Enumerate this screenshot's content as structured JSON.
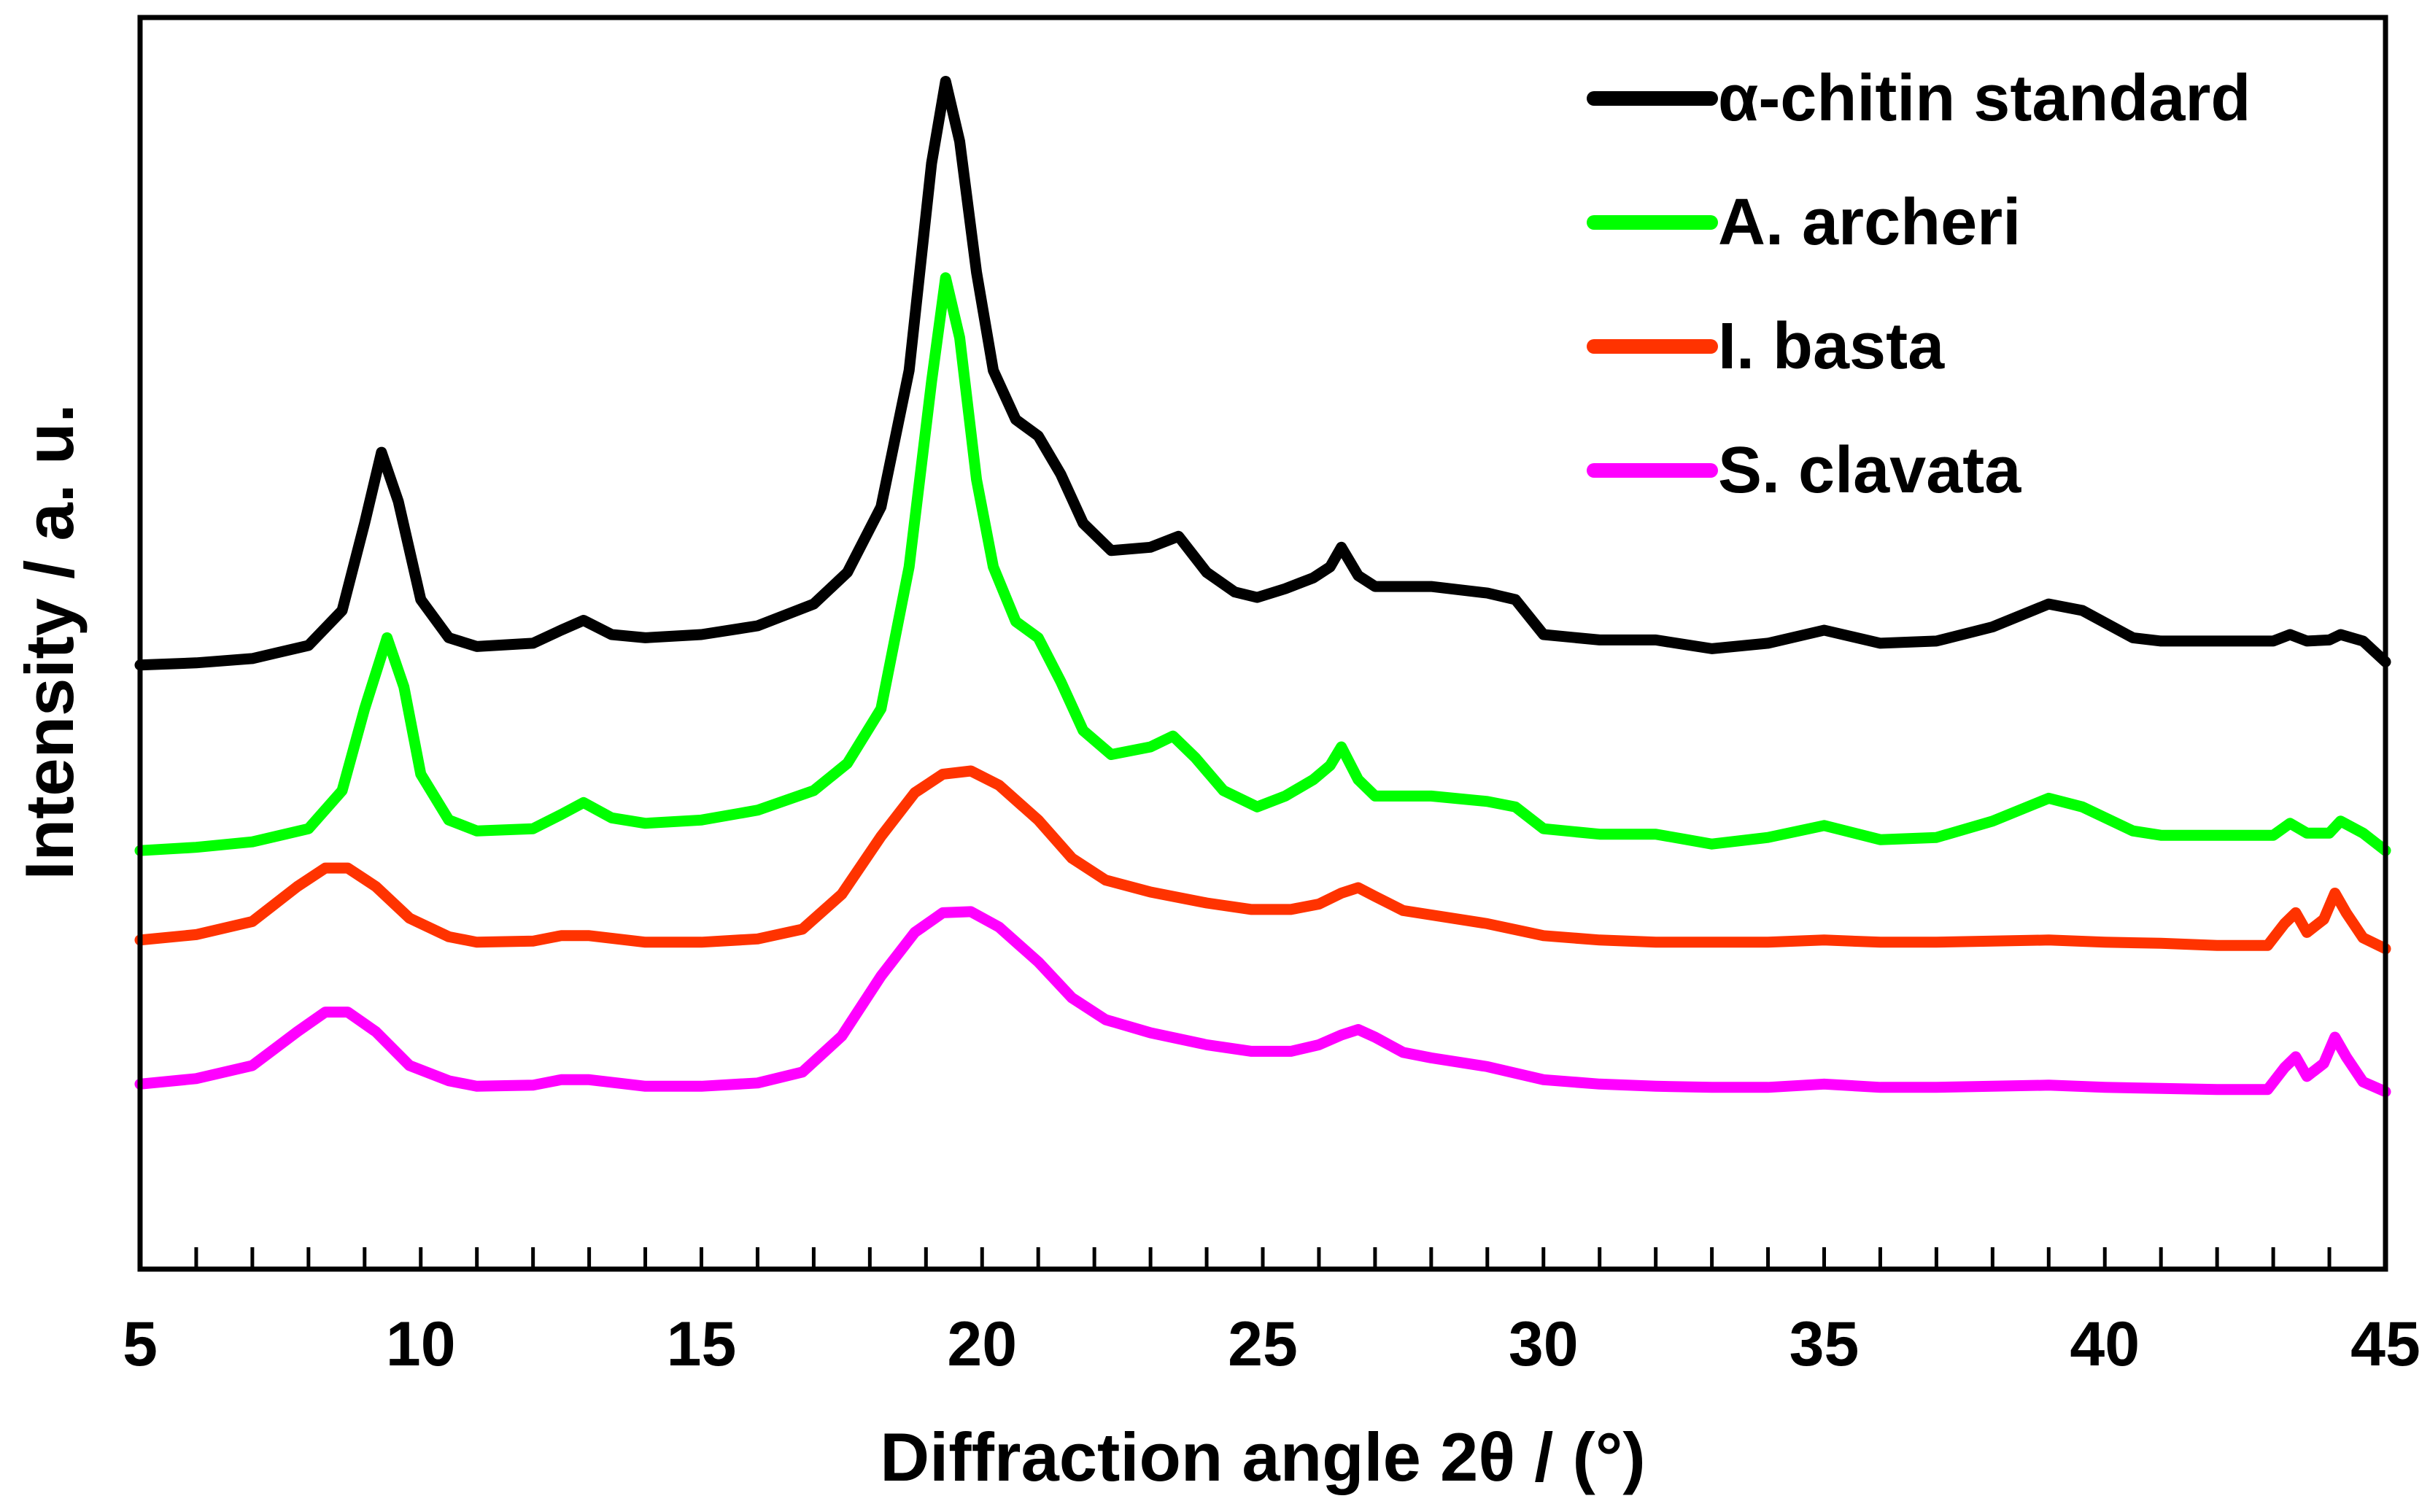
{
  "chart_data": {
    "type": "line",
    "title": "",
    "xlabel": "Diffraction angle 2θ / (°)",
    "ylabel": "Intensity / a. u.",
    "xlim": [
      5,
      45
    ],
    "ylim": [
      0,
      100
    ],
    "x_ticks": [
      5,
      10,
      15,
      20,
      25,
      30,
      35,
      40,
      45
    ],
    "x_minor_step": 1,
    "grid": false,
    "legend_position": "top-right",
    "series": [
      {
        "name": "α-chitin standard",
        "color": "#000000",
        "points": [
          [
            5,
            46
          ],
          [
            6,
            46.2
          ],
          [
            7,
            46.6
          ],
          [
            8,
            47.8
          ],
          [
            8.6,
            51
          ],
          [
            9,
            59
          ],
          [
            9.3,
            65.5
          ],
          [
            9.6,
            61
          ],
          [
            10,
            52
          ],
          [
            10.5,
            48.5
          ],
          [
            11,
            47.7
          ],
          [
            12,
            48
          ],
          [
            12.5,
            49.2
          ],
          [
            12.9,
            50.1
          ],
          [
            13.4,
            48.8
          ],
          [
            14,
            48.5
          ],
          [
            15,
            48.8
          ],
          [
            16,
            49.6
          ],
          [
            17,
            51.6
          ],
          [
            17.6,
            54.5
          ],
          [
            18.2,
            60.5
          ],
          [
            18.7,
            73
          ],
          [
            19.1,
            92
          ],
          [
            19.35,
            99.5
          ],
          [
            19.6,
            94
          ],
          [
            19.9,
            82
          ],
          [
            20.2,
            73
          ],
          [
            20.6,
            68.5
          ],
          [
            21,
            67
          ],
          [
            21.4,
            63.5
          ],
          [
            21.8,
            59
          ],
          [
            22.3,
            56.5
          ],
          [
            23,
            56.8
          ],
          [
            23.5,
            57.8
          ],
          [
            24,
            54.5
          ],
          [
            24.5,
            52.7
          ],
          [
            24.9,
            52.2
          ],
          [
            25.4,
            53
          ],
          [
            25.9,
            54
          ],
          [
            26.2,
            55
          ],
          [
            26.4,
            56.8
          ],
          [
            26.7,
            54.2
          ],
          [
            27,
            53.2
          ],
          [
            28,
            53.2
          ],
          [
            29,
            52.6
          ],
          [
            29.5,
            52
          ],
          [
            30,
            48.8
          ],
          [
            31,
            48.3
          ],
          [
            32,
            48.3
          ],
          [
            33,
            47.5
          ],
          [
            34,
            48
          ],
          [
            35,
            49.2
          ],
          [
            36,
            48
          ],
          [
            37,
            48.2
          ],
          [
            38,
            49.5
          ],
          [
            39,
            51.6
          ],
          [
            39.6,
            51
          ],
          [
            40.5,
            48.5
          ],
          [
            41,
            48.2
          ],
          [
            42,
            48.2
          ],
          [
            43,
            48.2
          ],
          [
            43.3,
            48.8
          ],
          [
            43.6,
            48.2
          ],
          [
            44,
            48.3
          ],
          [
            44.2,
            48.8
          ],
          [
            44.6,
            48.2
          ],
          [
            45,
            46.3
          ]
        ]
      },
      {
        "name": "A. archeri",
        "color": "#00ff00",
        "points": [
          [
            5,
            29
          ],
          [
            6,
            29.3
          ],
          [
            7,
            29.8
          ],
          [
            8,
            31
          ],
          [
            8.6,
            34.5
          ],
          [
            9,
            42
          ],
          [
            9.4,
            48.5
          ],
          [
            9.7,
            44
          ],
          [
            10,
            36
          ],
          [
            10.5,
            31.8
          ],
          [
            11,
            30.8
          ],
          [
            12,
            31
          ],
          [
            12.5,
            32.3
          ],
          [
            12.9,
            33.4
          ],
          [
            13.4,
            32
          ],
          [
            14,
            31.5
          ],
          [
            15,
            31.8
          ],
          [
            16,
            32.7
          ],
          [
            17,
            34.5
          ],
          [
            17.6,
            37
          ],
          [
            18.2,
            42
          ],
          [
            18.7,
            55
          ],
          [
            19.1,
            72
          ],
          [
            19.35,
            81.5
          ],
          [
            19.6,
            76
          ],
          [
            19.9,
            63
          ],
          [
            20.2,
            55
          ],
          [
            20.6,
            50
          ],
          [
            21,
            48.5
          ],
          [
            21.4,
            44.5
          ],
          [
            21.8,
            40
          ],
          [
            22.3,
            37.8
          ],
          [
            23,
            38.5
          ],
          [
            23.4,
            39.5
          ],
          [
            23.8,
            37.5
          ],
          [
            24.3,
            34.5
          ],
          [
            24.9,
            33
          ],
          [
            25.4,
            34
          ],
          [
            25.9,
            35.5
          ],
          [
            26.2,
            36.8
          ],
          [
            26.4,
            38.5
          ],
          [
            26.7,
            35.5
          ],
          [
            27,
            34
          ],
          [
            28,
            34
          ],
          [
            29,
            33.5
          ],
          [
            29.5,
            33
          ],
          [
            30,
            31
          ],
          [
            31,
            30.5
          ],
          [
            32,
            30.5
          ],
          [
            33,
            29.6
          ],
          [
            34,
            30.2
          ],
          [
            35,
            31.3
          ],
          [
            36,
            30
          ],
          [
            37,
            30.2
          ],
          [
            38,
            31.7
          ],
          [
            39,
            33.8
          ],
          [
            39.6,
            33
          ],
          [
            40.5,
            30.8
          ],
          [
            41,
            30.4
          ],
          [
            42,
            30.4
          ],
          [
            43,
            30.4
          ],
          [
            43.3,
            31.5
          ],
          [
            43.6,
            30.6
          ],
          [
            44,
            30.6
          ],
          [
            44.2,
            31.7
          ],
          [
            44.6,
            30.6
          ],
          [
            45,
            29
          ]
        ]
      },
      {
        "name": "I. basta",
        "color": "#ff3300",
        "points": [
          [
            5,
            20.8
          ],
          [
            6,
            21.3
          ],
          [
            7,
            22.5
          ],
          [
            7.8,
            25.7
          ],
          [
            8.3,
            27.4
          ],
          [
            8.7,
            27.4
          ],
          [
            9.2,
            25.7
          ],
          [
            9.8,
            22.8
          ],
          [
            10.5,
            21.1
          ],
          [
            11,
            20.6
          ],
          [
            12,
            20.7
          ],
          [
            12.5,
            21.2
          ],
          [
            13,
            21.2
          ],
          [
            14,
            20.6
          ],
          [
            15,
            20.6
          ],
          [
            16,
            20.9
          ],
          [
            16.8,
            21.8
          ],
          [
            17.5,
            25
          ],
          [
            18.2,
            30.3
          ],
          [
            18.8,
            34.3
          ],
          [
            19.3,
            36
          ],
          [
            19.8,
            36.3
          ],
          [
            20.3,
            35
          ],
          [
            21,
            31.8
          ],
          [
            21.6,
            28.3
          ],
          [
            22.2,
            26.3
          ],
          [
            23,
            25.2
          ],
          [
            24,
            24.2
          ],
          [
            24.8,
            23.6
          ],
          [
            25.5,
            23.6
          ],
          [
            26,
            24.1
          ],
          [
            26.4,
            25.1
          ],
          [
            26.7,
            25.6
          ],
          [
            27,
            24.8
          ],
          [
            27.5,
            23.5
          ],
          [
            28,
            23.1
          ],
          [
            29,
            22.3
          ],
          [
            30,
            21.2
          ],
          [
            31,
            20.8
          ],
          [
            32,
            20.6
          ],
          [
            33,
            20.6
          ],
          [
            34,
            20.6
          ],
          [
            35,
            20.8
          ],
          [
            36,
            20.6
          ],
          [
            37,
            20.6
          ],
          [
            38,
            20.7
          ],
          [
            39,
            20.8
          ],
          [
            40,
            20.6
          ],
          [
            41,
            20.5
          ],
          [
            42,
            20.3
          ],
          [
            42.9,
            20.3
          ],
          [
            43.2,
            22.3
          ],
          [
            43.4,
            23.3
          ],
          [
            43.6,
            21.5
          ],
          [
            43.9,
            22.7
          ],
          [
            44.1,
            25.1
          ],
          [
            44.3,
            23.3
          ],
          [
            44.6,
            21
          ],
          [
            45,
            20
          ]
        ]
      },
      {
        "name": "S. clavata",
        "color": "#ff00ff",
        "points": [
          [
            5,
            7.6
          ],
          [
            6,
            8.1
          ],
          [
            7,
            9.3
          ],
          [
            7.8,
            12.4
          ],
          [
            8.3,
            14.2
          ],
          [
            8.7,
            14.2
          ],
          [
            9.2,
            12.4
          ],
          [
            9.8,
            9.3
          ],
          [
            10.5,
            7.9
          ],
          [
            11,
            7.4
          ],
          [
            12,
            7.5
          ],
          [
            12.5,
            8
          ],
          [
            13,
            8
          ],
          [
            14,
            7.4
          ],
          [
            15,
            7.4
          ],
          [
            16,
            7.7
          ],
          [
            16.8,
            8.7
          ],
          [
            17.5,
            12
          ],
          [
            18.2,
            17.5
          ],
          [
            18.8,
            21.5
          ],
          [
            19.3,
            23.3
          ],
          [
            19.8,
            23.4
          ],
          [
            20.3,
            22
          ],
          [
            21,
            18.8
          ],
          [
            21.6,
            15.5
          ],
          [
            22.2,
            13.5
          ],
          [
            23,
            12.3
          ],
          [
            24,
            11.2
          ],
          [
            24.8,
            10.6
          ],
          [
            25.5,
            10.6
          ],
          [
            26,
            11.2
          ],
          [
            26.4,
            12.1
          ],
          [
            26.7,
            12.6
          ],
          [
            27,
            11.9
          ],
          [
            27.5,
            10.5
          ],
          [
            28,
            10
          ],
          [
            29,
            9.2
          ],
          [
            30,
            8
          ],
          [
            31,
            7.6
          ],
          [
            32,
            7.4
          ],
          [
            33,
            7.3
          ],
          [
            34,
            7.3
          ],
          [
            35,
            7.6
          ],
          [
            36,
            7.3
          ],
          [
            37,
            7.3
          ],
          [
            38,
            7.4
          ],
          [
            39,
            7.5
          ],
          [
            40,
            7.3
          ],
          [
            41,
            7.2
          ],
          [
            42,
            7.1
          ],
          [
            42.9,
            7.1
          ],
          [
            43.2,
            9.1
          ],
          [
            43.4,
            10.1
          ],
          [
            43.6,
            8.3
          ],
          [
            43.9,
            9.5
          ],
          [
            44.1,
            11.9
          ],
          [
            44.3,
            10.1
          ],
          [
            44.6,
            7.8
          ],
          [
            45,
            6.9
          ]
        ]
      }
    ]
  }
}
